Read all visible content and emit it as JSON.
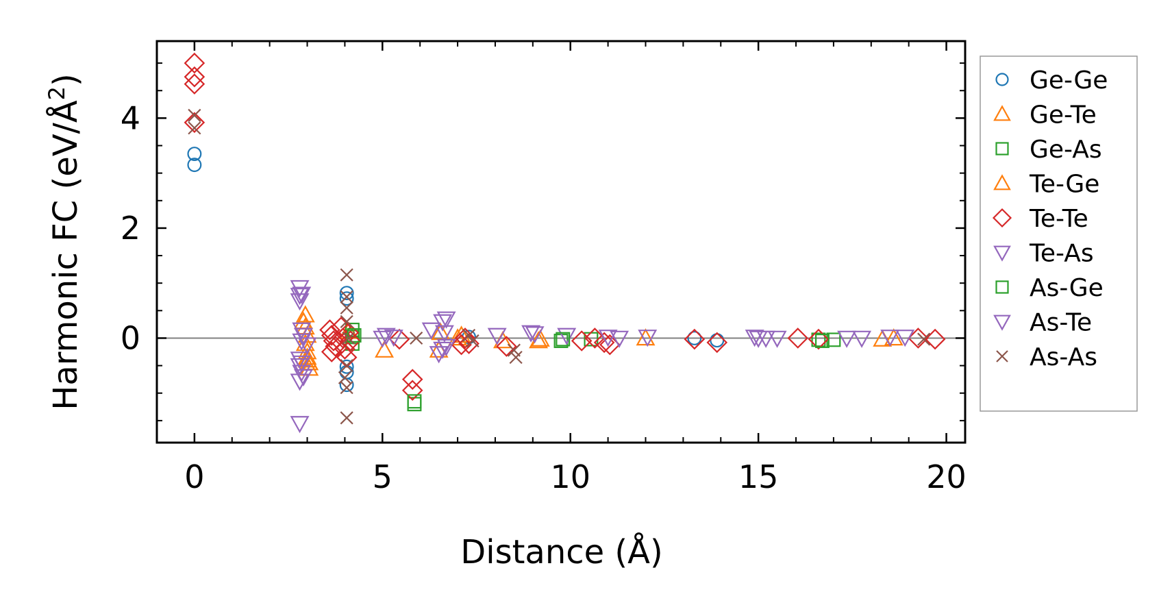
{
  "chart_data": {
    "type": "scatter",
    "title": "",
    "xlabel": "Distance (Å)",
    "ylabel": "Harmonic FC (eV/Å²)",
    "ylabel_main": "Harmonic FC (eV/Å",
    "ylabel_sup": "2",
    "ylabel_close": ")",
    "xlim": [
      -1,
      20.5
    ],
    "ylim": [
      -1.9,
      5.4
    ],
    "xticks": [
      0,
      5,
      10,
      15,
      20
    ],
    "xtick_labels": [
      "0",
      "5",
      "10",
      "15",
      "20"
    ],
    "yticks": [
      0,
      2,
      4
    ],
    "ytick_labels": [
      "0",
      "2",
      "4"
    ],
    "zero_line": 0,
    "grid": false,
    "legend_position": "outside-right",
    "series": [
      {
        "name": "Ge-Ge",
        "marker": "circle",
        "color": "#1f77b4",
        "points": [
          [
            0,
            3.35
          ],
          [
            0,
            3.15
          ],
          [
            4.05,
            0.82
          ],
          [
            4.05,
            0.72
          ],
          [
            4.05,
            -0.62
          ],
          [
            4.05,
            -0.85
          ],
          [
            4.05,
            -0.52
          ],
          [
            7.3,
            0.02
          ],
          [
            13.3,
            0.0
          ],
          [
            13.9,
            -0.04
          ]
        ]
      },
      {
        "name": "Ge-Te",
        "marker": "triangle-up",
        "color": "#ff7f0e",
        "points": [
          [
            2.95,
            0.42
          ],
          [
            2.95,
            0.2
          ],
          [
            3.0,
            -0.25
          ],
          [
            3.0,
            -0.4
          ],
          [
            3.05,
            -0.55
          ],
          [
            3.0,
            0.05
          ],
          [
            4.1,
            0.12
          ],
          [
            5.05,
            -0.22
          ],
          [
            6.5,
            -0.22
          ],
          [
            7.1,
            0.05
          ],
          [
            8.2,
            -0.05
          ],
          [
            9.2,
            -0.02
          ],
          [
            12.0,
            0.0
          ],
          [
            18.3,
            -0.02
          ]
        ]
      },
      {
        "name": "Ge-As",
        "marker": "square",
        "color": "#2ca02c",
        "points": [
          [
            4.2,
            0.15
          ],
          [
            4.2,
            0.02
          ],
          [
            4.2,
            -0.1
          ],
          [
            5.85,
            -1.2
          ],
          [
            9.75,
            -0.05
          ],
          [
            10.55,
            -0.02
          ],
          [
            16.6,
            -0.03
          ],
          [
            17.0,
            -0.03
          ]
        ]
      },
      {
        "name": "Te-Ge",
        "marker": "triangle-up",
        "color": "#ff7f0e",
        "points": [
          [
            2.9,
            0.3
          ],
          [
            2.95,
            -0.1
          ],
          [
            3.0,
            -0.35
          ],
          [
            3.05,
            -0.45
          ],
          [
            6.55,
            0.1
          ],
          [
            7.0,
            0.0
          ],
          [
            9.15,
            -0.05
          ],
          [
            18.6,
            0.0
          ]
        ]
      },
      {
        "name": "Te-Te",
        "marker": "diamond",
        "color": "#d62728",
        "points": [
          [
            0,
            5.0
          ],
          [
            0,
            4.75
          ],
          [
            0,
            4.62
          ],
          [
            0,
            3.92
          ],
          [
            3.6,
            0.15
          ],
          [
            3.65,
            0.05
          ],
          [
            3.7,
            -0.05
          ],
          [
            3.75,
            -0.15
          ],
          [
            3.65,
            -0.25
          ],
          [
            3.9,
            0.2
          ],
          [
            3.95,
            0.0
          ],
          [
            4.0,
            -0.2
          ],
          [
            4.05,
            -0.35
          ],
          [
            4.1,
            0.1
          ],
          [
            4.15,
            -0.05
          ],
          [
            5.45,
            -0.02
          ],
          [
            5.8,
            -0.75
          ],
          [
            5.8,
            -0.95
          ],
          [
            7.1,
            -0.12
          ],
          [
            7.2,
            0.0
          ],
          [
            7.3,
            -0.1
          ],
          [
            8.3,
            -0.15
          ],
          [
            10.3,
            -0.05
          ],
          [
            10.65,
            0.0
          ],
          [
            10.9,
            -0.08
          ],
          [
            11.05,
            -0.12
          ],
          [
            13.3,
            -0.02
          ],
          [
            13.9,
            -0.08
          ],
          [
            16.05,
            0.0
          ],
          [
            16.6,
            -0.02
          ],
          [
            19.25,
            0.0
          ],
          [
            19.7,
            -0.02
          ]
        ]
      },
      {
        "name": "Te-As",
        "marker": "triangle-down",
        "color": "#9467bd",
        "points": [
          [
            2.8,
            0.92
          ],
          [
            2.8,
            0.78
          ],
          [
            2.8,
            0.68
          ],
          [
            2.85,
            0.15
          ],
          [
            2.85,
            -0.05
          ],
          [
            2.8,
            -0.38
          ],
          [
            2.8,
            -0.5
          ],
          [
            2.85,
            -0.62
          ],
          [
            2.8,
            -0.78
          ],
          [
            2.8,
            -1.55
          ],
          [
            3.0,
            -0.12
          ],
          [
            5.1,
            0.05
          ],
          [
            5.3,
            0.02
          ],
          [
            6.3,
            0.15
          ],
          [
            6.6,
            0.3
          ],
          [
            6.65,
            0.1
          ],
          [
            6.6,
            -0.2
          ],
          [
            8.05,
            0.05
          ],
          [
            8.95,
            0.1
          ],
          [
            9.9,
            0.05
          ],
          [
            11.3,
            0.0
          ],
          [
            12.05,
            0.02
          ],
          [
            15.0,
            0.0
          ],
          [
            15.5,
            0.0
          ],
          [
            17.35,
            0.0
          ],
          [
            17.75,
            0.0
          ],
          [
            18.5,
            0.02
          ],
          [
            18.9,
            0.02
          ]
        ]
      },
      {
        "name": "As-Ge",
        "marker": "square",
        "color": "#2ca02c",
        "points": [
          [
            4.25,
            0.05
          ],
          [
            5.85,
            -1.15
          ],
          [
            9.8,
            -0.02
          ],
          [
            16.7,
            -0.05
          ]
        ]
      },
      {
        "name": "As-Te",
        "marker": "triangle-down",
        "color": "#9467bd",
        "points": [
          [
            2.85,
            0.8
          ],
          [
            2.9,
            0.05
          ],
          [
            2.85,
            -0.45
          ],
          [
            2.9,
            -0.7
          ],
          [
            5.0,
            0.0
          ],
          [
            6.7,
            0.35
          ],
          [
            6.7,
            -0.15
          ],
          [
            6.5,
            -0.28
          ],
          [
            9.05,
            0.08
          ],
          [
            11.0,
            0.02
          ],
          [
            14.9,
            0.02
          ],
          [
            15.2,
            0.0
          ]
        ]
      },
      {
        "name": "As-As",
        "marker": "cross",
        "color": "#8c564b",
        "points": [
          [
            0,
            4.05
          ],
          [
            0,
            3.82
          ],
          [
            4.05,
            1.15
          ],
          [
            4.05,
            0.75
          ],
          [
            4.05,
            0.55
          ],
          [
            4.05,
            0.3
          ],
          [
            4.1,
            0.0
          ],
          [
            4.05,
            -0.5
          ],
          [
            4.0,
            -0.72
          ],
          [
            4.05,
            -0.9
          ],
          [
            4.05,
            -1.45
          ],
          [
            5.9,
            0.0
          ],
          [
            7.3,
            0.05
          ],
          [
            7.4,
            -0.05
          ],
          [
            8.5,
            -0.22
          ],
          [
            8.55,
            -0.35
          ],
          [
            19.4,
            -0.02
          ]
        ]
      }
    ]
  }
}
